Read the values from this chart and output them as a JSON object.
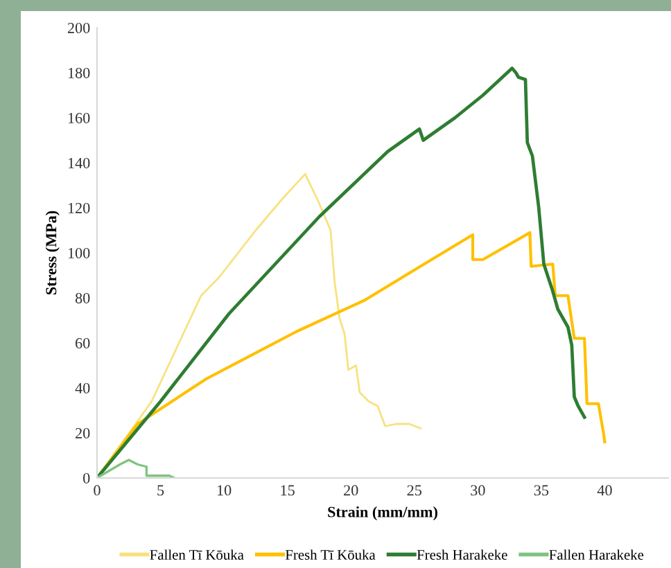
{
  "chart_data": {
    "type": "line",
    "xlabel": "Strain (mm/mm)",
    "ylabel": "Stress (MPa)",
    "xlim": [
      0,
      45
    ],
    "xticks": [
      0,
      5,
      10,
      15,
      20,
      25,
      30,
      35,
      40
    ],
    "ylim": [
      0,
      200
    ],
    "yticks": [
      0,
      20,
      40,
      60,
      80,
      100,
      120,
      140,
      160,
      180,
      200
    ],
    "grid": false,
    "legend": "bottom",
    "marker": "none",
    "line_style": "solid",
    "series": [
      {
        "name": "Fallen Tī Kōuka",
        "color": "#f7e27e",
        "x": [
          0,
          4.3,
          8.2,
          9.6,
          12.5,
          14.6,
          16.4,
          17.5,
          18.4,
          18.7,
          19.1,
          19.5,
          19.8,
          20.4,
          20.7,
          21.4,
          22.1,
          22.7,
          23.6,
          24.6,
          25.5
        ],
        "values": [
          0,
          34,
          81,
          89,
          110,
          124,
          135,
          122,
          110,
          88,
          71,
          64,
          48,
          50,
          38,
          34,
          32,
          23,
          24,
          24,
          22
        ]
      },
      {
        "name": "Fresh Tī Kōuka",
        "color": "#ffc000",
        "x": [
          0,
          3.2,
          8.6,
          15.7,
          21.1,
          24.6,
          29.3,
          29.6,
          29.6,
          30.4,
          34.1,
          34.2,
          35.9,
          36.1,
          37.1,
          37.6,
          38.4,
          38.6,
          39.5,
          39.9,
          40
        ],
        "values": [
          0,
          24,
          44,
          65,
          79,
          91,
          107,
          108,
          97,
          97,
          109,
          94,
          95,
          81,
          81,
          62,
          62,
          33,
          33,
          20,
          16
        ]
      },
      {
        "name": "Fresh Harakeke",
        "color": "#2e7d32",
        "x": [
          0,
          5,
          10.4,
          17.5,
          22.9,
          25.4,
          25.7,
          28.2,
          30.4,
          32.7,
          33.0,
          33.2,
          33.75,
          33.9,
          34.3,
          34.8,
          35.2,
          35.9,
          36.3,
          37.1,
          37.4,
          37.6,
          37.9,
          38.4
        ],
        "values": [
          0,
          34,
          73,
          116,
          145,
          155,
          150,
          160,
          170,
          182,
          180,
          178,
          177,
          149,
          143,
          120,
          95,
          83,
          75,
          67,
          59,
          36,
          32,
          27
        ]
      },
      {
        "name": "Fallen Harakeke",
        "color": "#7fc47f",
        "x": [
          0,
          1.8,
          2.5,
          3.2,
          3.9,
          3.9,
          5.7,
          6.1
        ],
        "values": [
          0,
          6,
          8,
          6,
          5,
          1,
          1,
          0
        ]
      }
    ]
  }
}
